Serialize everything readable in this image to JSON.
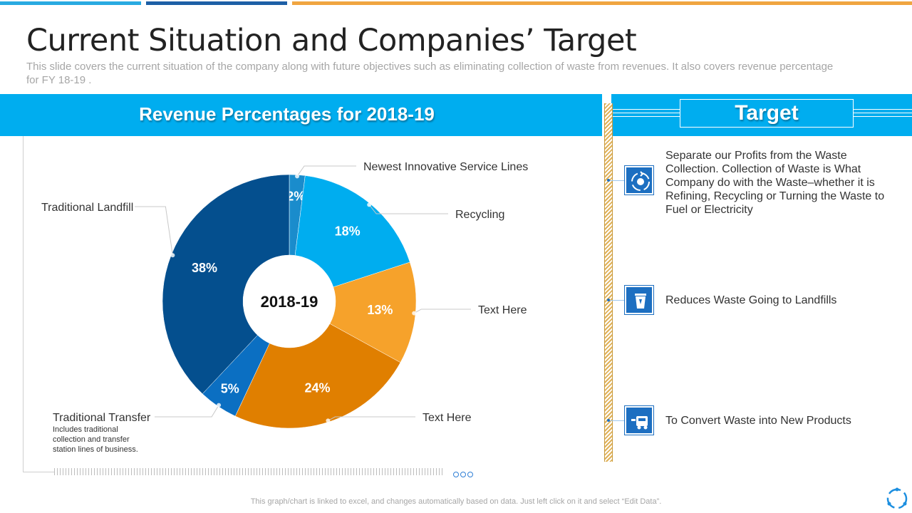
{
  "page": {
    "title": "Current Situation and Companies’ Target",
    "subtitle": "This slide covers the current situation of the company along with future objectives such as eliminating collection of waste  from revenues. It also covers revenue percentage for FY 18-19 .",
    "footer": "This graph/chart is linked to excel,  and changes automatically based on data. Just left click on it and select “Edit Data”."
  },
  "colors": {
    "accent": "#00adef",
    "navy": "#044f8e",
    "sky": "#00adef",
    "teal": "#1a8ccc",
    "orange_light": "#f6a22b",
    "orange_dark": "#e07f00",
    "blue_mid": "#0b6fc2"
  },
  "chart_data": {
    "type": "pie",
    "title": "Revenue Percentages for 2018-19",
    "center_label": "2018-19",
    "slices": [
      {
        "label": "Newest Innovative  Service Lines",
        "value": 2,
        "display": "2%",
        "color": "#1a8ccc"
      },
      {
        "label": "Recycling",
        "value": 18,
        "display": "18%",
        "color": "#00adef"
      },
      {
        "label": "Text Here",
        "value": 13,
        "display": "13%",
        "color": "#f6a22b"
      },
      {
        "label": "Text Here",
        "value": 24,
        "display": "24%",
        "color": "#e07f00"
      },
      {
        "label": "Traditional Transfer",
        "value": 5,
        "display": "5%",
        "color": "#0b6fc2",
        "description": "Includes traditional collection and transfer station lines of business."
      },
      {
        "label": "Traditional Landfill",
        "value": 38,
        "display": "38%",
        "color": "#044f8e"
      }
    ]
  },
  "target": {
    "heading": "Target",
    "items": [
      {
        "icon": "recycle-icon",
        "text": "Separate our Profits from the Waste Collection. Collection of Waste is What Company do with the Waste–whether  it is Refining, Recycling  or Turning  the Waste to Fuel or Electricity"
      },
      {
        "icon": "trash-bin-icon",
        "text": "Reduces Waste Going to Landfills"
      },
      {
        "icon": "garbage-truck-icon",
        "text": "To Convert Waste into New Products"
      }
    ]
  }
}
